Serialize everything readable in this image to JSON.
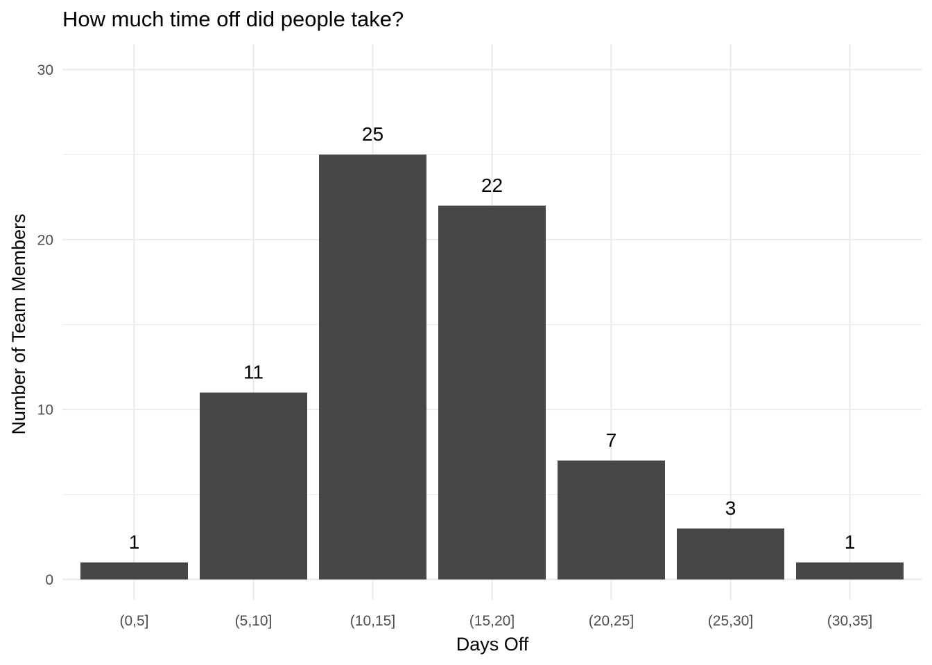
{
  "chart_data": {
    "type": "bar",
    "title": "How much time off did people take?",
    "xlabel": "Days Off",
    "ylabel": "Number of Team Members",
    "categories": [
      "(0,5]",
      "(5,10]",
      "(10,15]",
      "(15,20]",
      "(20,25]",
      "(25,30]",
      "(30,35]"
    ],
    "values": [
      1,
      11,
      25,
      22,
      7,
      3,
      1
    ],
    "data_labels": [
      "1",
      "11",
      "25",
      "22",
      "7",
      "3",
      "1"
    ],
    "ylim": [
      0,
      30
    ],
    "yticks": [
      "0",
      "10",
      "20",
      "30"
    ],
    "grid": true,
    "legend": "none",
    "colors": {
      "bar": "#474747",
      "grid": "#ebebeb",
      "tick_text": "#4d4d4d",
      "text": "#000000"
    }
  }
}
